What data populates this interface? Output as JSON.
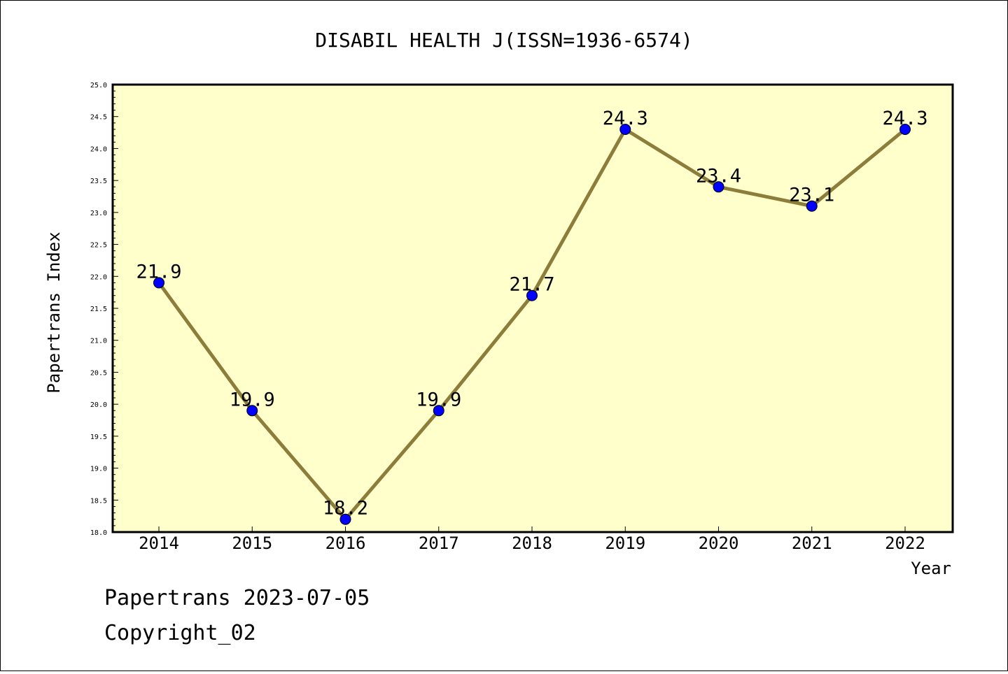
{
  "colors": {
    "plot_background": "#ffffcc",
    "line": "#8c7d3a",
    "marker": "#0000ff"
  },
  "chart_data": {
    "type": "line",
    "title": "DISABIL HEALTH J(ISSN=1936-6574)",
    "xlabel": "Year",
    "ylabel": "Papertrans Index",
    "categories": [
      "2014",
      "2015",
      "2016",
      "2017",
      "2018",
      "2019",
      "2020",
      "2021",
      "2022"
    ],
    "series": [
      {
        "values": [
          21.9,
          19.9,
          18.2,
          19.9,
          21.7,
          24.3,
          23.4,
          23.1,
          24.3
        ]
      }
    ],
    "data_labels": [
      "21.9",
      "19.9",
      "18.2",
      "19.9",
      "21.7",
      "24.3",
      "23.4",
      "23.1",
      "24.3"
    ],
    "ylim": [
      18.0,
      25.0
    ],
    "yticks": [
      "18.0",
      "18.5",
      "19.0",
      "19.5",
      "20.0",
      "20.5",
      "21.0",
      "21.5",
      "22.0",
      "22.5",
      "23.0",
      "23.5",
      "24.0",
      "24.5",
      "25.0"
    ],
    "grid": false,
    "legend": "none"
  },
  "footer": {
    "line1": "Papertrans 2023-07-05",
    "line2": "Copyright_02"
  }
}
